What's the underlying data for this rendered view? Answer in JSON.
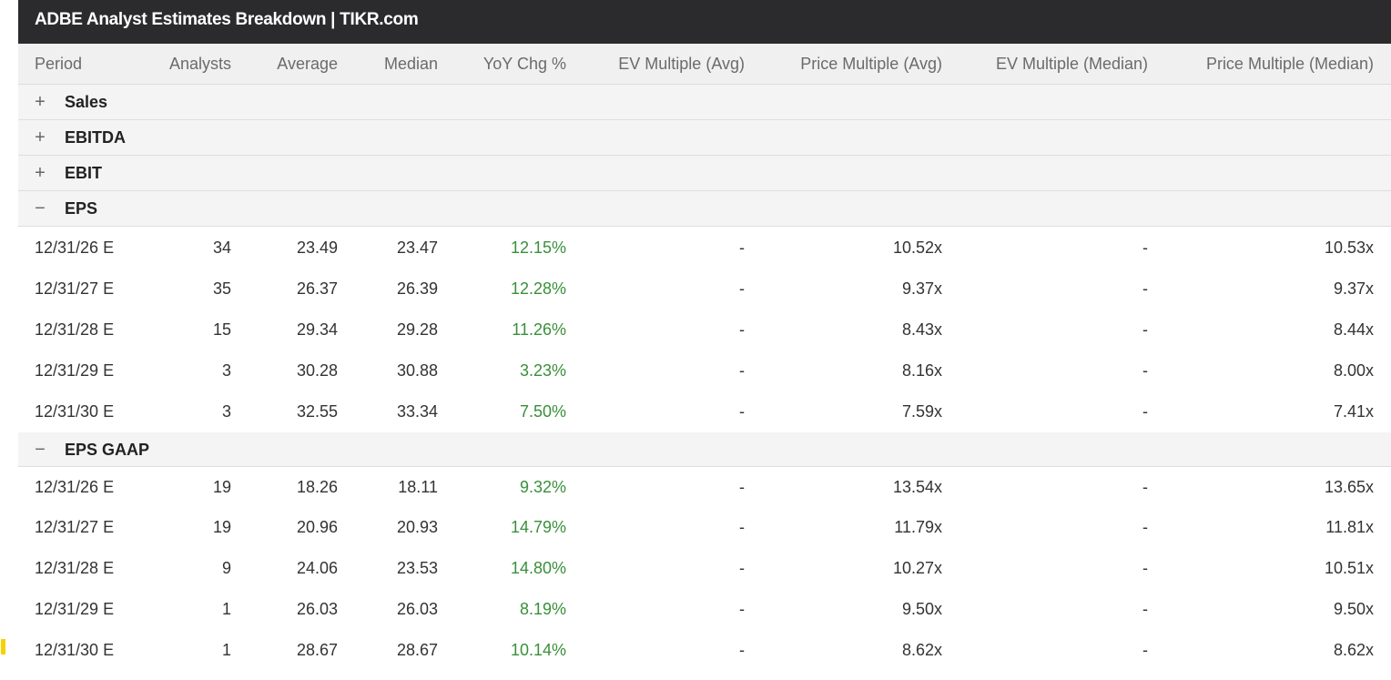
{
  "title": "ADBE Analyst Estimates Breakdown | TIKR.com",
  "columns": [
    "Period",
    "Analysts",
    "Average",
    "Median",
    "YoY Chg %",
    "EV Multiple (Avg)",
    "Price Multiple (Avg)",
    "EV Multiple (Median)",
    "Price Multiple (Median)"
  ],
  "sections": [
    {
      "toggle": "+",
      "label": "Sales"
    },
    {
      "toggle": "+",
      "label": "EBITDA"
    },
    {
      "toggle": "+",
      "label": "EBIT"
    },
    {
      "toggle": "−",
      "label": "EPS"
    },
    {
      "toggle": "−",
      "label": "EPS GAAP"
    }
  ],
  "eps_rows": [
    [
      "12/31/26 E",
      "34",
      "23.49",
      "23.47",
      "12.15%",
      "-",
      "10.52x",
      "-",
      "10.53x"
    ],
    [
      "12/31/27 E",
      "35",
      "26.37",
      "26.39",
      "12.28%",
      "-",
      "9.37x",
      "-",
      "9.37x"
    ],
    [
      "12/31/28 E",
      "15",
      "29.34",
      "29.28",
      "11.26%",
      "-",
      "8.43x",
      "-",
      "8.44x"
    ],
    [
      "12/31/29 E",
      "3",
      "30.28",
      "30.88",
      "3.23%",
      "-",
      "8.16x",
      "-",
      "8.00x"
    ],
    [
      "12/31/30 E",
      "3",
      "32.55",
      "33.34",
      "7.50%",
      "-",
      "7.59x",
      "-",
      "7.41x"
    ]
  ],
  "eps_gaap_rows": [
    [
      "12/31/26 E",
      "19",
      "18.26",
      "18.11",
      "9.32%",
      "-",
      "13.54x",
      "-",
      "13.65x"
    ],
    [
      "12/31/27 E",
      "19",
      "20.96",
      "20.93",
      "14.79%",
      "-",
      "11.79x",
      "-",
      "11.81x"
    ],
    [
      "12/31/28 E",
      "9",
      "24.06",
      "23.53",
      "14.80%",
      "-",
      "10.27x",
      "-",
      "10.51x"
    ],
    [
      "12/31/29 E",
      "1",
      "26.03",
      "26.03",
      "8.19%",
      "-",
      "9.50x",
      "-",
      "9.50x"
    ],
    [
      "12/31/30 E",
      "1",
      "28.67",
      "28.67",
      "10.14%",
      "-",
      "8.62x",
      "-",
      "8.62x"
    ]
  ],
  "colors": {
    "positive": "#3a8f3a",
    "title_bg": "#2b2b2d",
    "marker": "#f5d200"
  }
}
